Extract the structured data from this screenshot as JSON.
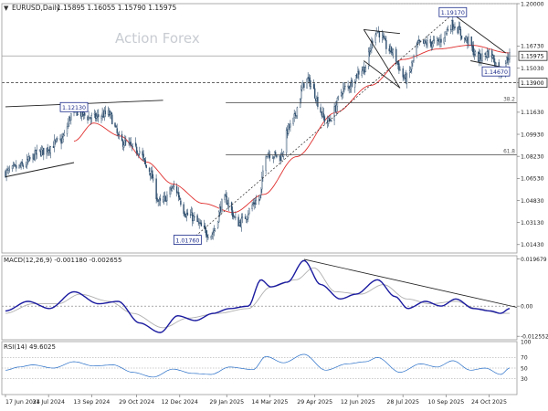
{
  "header": {
    "title": "EURUSD,Daily",
    "ohlc": "1.15895 1.16055 1.15790 1.15975"
  },
  "watermark": "Action Forex",
  "colors": {
    "candle": "#2f4f6f",
    "ma": "#e0302f",
    "macd": "#1a1aa0",
    "signal": "#b0b0b0",
    "trendline": "#222222",
    "dotted": "#555555"
  },
  "chart_data": [
    {
      "type": "candlestick",
      "panel": "price",
      "ylim": [
        1.0078,
        1.2
      ],
      "y_ticks": [
        "1.20000",
        "1.16730",
        "1.15030",
        "1.13900",
        "1.11630",
        "1.09930",
        "1.08230",
        "1.06530",
        "1.04830",
        "1.03130",
        "1.01430"
      ],
      "y_tick_values": [
        1.2,
        1.1673,
        1.1503,
        1.139,
        1.1163,
        1.0993,
        1.0823,
        1.0653,
        1.0483,
        1.0313,
        1.0143
      ],
      "current_price": "1.15975",
      "x_ticks": [
        "17 Jun 2024",
        "31 Jul 2024",
        "13 Sep 2024",
        "29 Oct 2024",
        "12 Dec 2024",
        "29 Jan 2025",
        "14 Mar 2025",
        "29 Apr 2025",
        "12 Jun 2025",
        "28 Jul 2025",
        "10 Sep 2025",
        "24 Oct 2025"
      ],
      "annotations": [
        {
          "label": "1.12130",
          "price": 1.1213
        },
        {
          "label": "1.01760",
          "price": 1.0176
        },
        {
          "label": "1.19170",
          "price": 1.1917
        },
        {
          "label": "1.14670",
          "price": 1.1467
        }
      ],
      "levels": [
        {
          "label": "1.13900",
          "price": 1.139
        },
        {
          "label": "38.2",
          "price": 1.1235
        },
        {
          "label": "61.8",
          "price": 1.0835
        }
      ],
      "anchors": [
        {
          "date": "2024-06-17",
          "price": 1.07
        },
        {
          "date": "2024-07-01",
          "price": 1.074
        },
        {
          "date": "2024-07-24",
          "price": 1.086
        },
        {
          "date": "2024-08-12",
          "price": 1.094
        },
        {
          "date": "2024-08-26",
          "price": 1.117
        },
        {
          "date": "2024-09-13",
          "price": 1.112
        },
        {
          "date": "2024-09-30",
          "price": 1.115
        },
        {
          "date": "2024-10-14",
          "price": 1.093
        },
        {
          "date": "2024-10-31",
          "price": 1.087
        },
        {
          "date": "2024-11-10",
          "price": 1.072
        },
        {
          "date": "2024-11-22",
          "price": 1.046
        },
        {
          "date": "2024-12-06",
          "price": 1.058
        },
        {
          "date": "2024-12-20",
          "price": 1.037
        },
        {
          "date": "2025-01-13",
          "price": 1.022
        },
        {
          "date": "2025-01-27",
          "price": 1.049
        },
        {
          "date": "2025-02-10",
          "price": 1.031
        },
        {
          "date": "2025-03-03",
          "price": 1.049
        },
        {
          "date": "2025-03-10",
          "price": 1.085
        },
        {
          "date": "2025-03-25",
          "price": 1.082
        },
        {
          "date": "2025-04-03",
          "price": 1.105
        },
        {
          "date": "2025-04-21",
          "price": 1.141
        },
        {
          "date": "2025-05-12",
          "price": 1.109
        },
        {
          "date": "2025-05-30",
          "price": 1.135
        },
        {
          "date": "2025-06-18",
          "price": 1.15
        },
        {
          "date": "2025-07-01",
          "price": 1.179
        },
        {
          "date": "2025-07-15",
          "price": 1.164
        },
        {
          "date": "2025-07-31",
          "price": 1.142
        },
        {
          "date": "2025-08-14",
          "price": 1.169
        },
        {
          "date": "2025-09-01",
          "price": 1.17
        },
        {
          "date": "2025-09-17",
          "price": 1.184
        },
        {
          "date": "2025-10-01",
          "price": 1.172
        },
        {
          "date": "2025-10-13",
          "price": 1.158
        },
        {
          "date": "2025-10-24",
          "price": 1.162
        },
        {
          "date": "2025-11-05",
          "price": 1.148
        },
        {
          "date": "2025-11-14",
          "price": 1.16
        }
      ],
      "moving_average": {
        "name": "",
        "points": [
          {
            "date": "2024-08-26",
            "price": 1.094
          },
          {
            "date": "2024-09-15",
            "price": 1.108
          },
          {
            "date": "2024-10-12",
            "price": 1.098
          },
          {
            "date": "2024-11-08",
            "price": 1.078
          },
          {
            "date": "2024-12-05",
            "price": 1.061
          },
          {
            "date": "2025-01-05",
            "price": 1.046
          },
          {
            "date": "2025-02-05",
            "price": 1.039
          },
          {
            "date": "2025-03-08",
            "price": 1.053
          },
          {
            "date": "2025-04-10",
            "price": 1.082
          },
          {
            "date": "2025-05-20",
            "price": 1.116
          },
          {
            "date": "2025-06-25",
            "price": 1.137
          },
          {
            "date": "2025-07-28",
            "price": 1.157
          },
          {
            "date": "2025-09-01",
            "price": 1.165
          },
          {
            "date": "2025-10-05",
            "price": 1.168
          },
          {
            "date": "2025-11-14",
            "price": 1.162
          }
        ]
      }
    },
    {
      "type": "line",
      "panel": "macd",
      "title": "MACD(12,26,9) -0.001180 -0.002655",
      "ylim": [
        -0.014,
        0.021
      ],
      "y_ticks": [
        "0.019679",
        "0.00",
        "-0.012552"
      ],
      "y_tick_values": [
        0.019679,
        0.0,
        -0.012552
      ],
      "series": [
        {
          "role": "macd",
          "points": [
            {
              "date": "2024-06-17",
              "value": -0.002
            },
            {
              "date": "2024-07-10",
              "value": 0.002
            },
            {
              "date": "2024-08-01",
              "value": -0.001
            },
            {
              "date": "2024-08-26",
              "value": 0.006
            },
            {
              "date": "2024-09-20",
              "value": 0.001
            },
            {
              "date": "2024-10-10",
              "value": 0.002
            },
            {
              "date": "2024-11-01",
              "value": -0.007
            },
            {
              "date": "2024-11-22",
              "value": -0.011
            },
            {
              "date": "2024-12-10",
              "value": -0.004
            },
            {
              "date": "2024-12-28",
              "value": -0.006
            },
            {
              "date": "2025-01-15",
              "value": -0.003
            },
            {
              "date": "2025-02-01",
              "value": -0.001
            },
            {
              "date": "2025-02-20",
              "value": 0.0
            },
            {
              "date": "2025-03-05",
              "value": 0.011
            },
            {
              "date": "2025-03-15",
              "value": 0.008
            },
            {
              "date": "2025-04-01",
              "value": 0.01
            },
            {
              "date": "2025-04-18",
              "value": 0.019
            },
            {
              "date": "2025-05-05",
              "value": 0.009
            },
            {
              "date": "2025-05-25",
              "value": 0.003
            },
            {
              "date": "2025-06-10",
              "value": 0.005
            },
            {
              "date": "2025-07-02",
              "value": 0.011
            },
            {
              "date": "2025-07-20",
              "value": 0.004
            },
            {
              "date": "2025-08-02",
              "value": -0.001
            },
            {
              "date": "2025-08-20",
              "value": 0.002
            },
            {
              "date": "2025-09-05",
              "value": 0.0
            },
            {
              "date": "2025-09-20",
              "value": 0.003
            },
            {
              "date": "2025-10-08",
              "value": -0.001
            },
            {
              "date": "2025-10-25",
              "value": -0.002
            },
            {
              "date": "2025-11-05",
              "value": -0.003
            },
            {
              "date": "2025-11-14",
              "value": -0.001
            }
          ]
        },
        {
          "role": "signal",
          "points": [
            {
              "date": "2024-06-17",
              "value": -0.003
            },
            {
              "date": "2024-07-15",
              "value": 0.001
            },
            {
              "date": "2024-08-10",
              "value": 0.001
            },
            {
              "date": "2024-09-01",
              "value": 0.005
            },
            {
              "date": "2024-10-01",
              "value": 0.002
            },
            {
              "date": "2024-10-25",
              "value": -0.003
            },
            {
              "date": "2024-11-25",
              "value": -0.009
            },
            {
              "date": "2024-12-20",
              "value": -0.005
            },
            {
              "date": "2025-01-20",
              "value": -0.003
            },
            {
              "date": "2025-02-20",
              "value": -0.001
            },
            {
              "date": "2025-03-15",
              "value": 0.008
            },
            {
              "date": "2025-04-10",
              "value": 0.011
            },
            {
              "date": "2025-04-28",
              "value": 0.016
            },
            {
              "date": "2025-05-20",
              "value": 0.006
            },
            {
              "date": "2025-06-15",
              "value": 0.005
            },
            {
              "date": "2025-07-08",
              "value": 0.009
            },
            {
              "date": "2025-08-01",
              "value": 0.003
            },
            {
              "date": "2025-08-25",
              "value": 0.001
            },
            {
              "date": "2025-09-20",
              "value": 0.002
            },
            {
              "date": "2025-10-12",
              "value": -0.001
            },
            {
              "date": "2025-11-05",
              "value": -0.003
            },
            {
              "date": "2025-11-14",
              "value": -0.003
            }
          ]
        }
      ]
    },
    {
      "type": "line",
      "panel": "rsi",
      "title": "RSI(14) 49.6025",
      "ylim": [
        0,
        100
      ],
      "y_ticks": [
        "100",
        "70",
        "50",
        "30",
        "0"
      ],
      "y_tick_values": [
        100,
        70,
        50,
        30,
        0
      ],
      "series": [
        {
          "role": "rsi",
          "points": [
            {
              "date": "2024-06-17",
              "value": 46
            },
            {
              "date": "2024-07-01",
              "value": 52
            },
            {
              "date": "2024-07-15",
              "value": 56
            },
            {
              "date": "2024-08-05",
              "value": 50
            },
            {
              "date": "2024-08-26",
              "value": 62
            },
            {
              "date": "2024-09-15",
              "value": 54
            },
            {
              "date": "2024-10-05",
              "value": 56
            },
            {
              "date": "2024-10-25",
              "value": 42
            },
            {
              "date": "2024-11-15",
              "value": 33
            },
            {
              "date": "2024-12-05",
              "value": 48
            },
            {
              "date": "2024-12-25",
              "value": 40
            },
            {
              "date": "2025-01-13",
              "value": 38
            },
            {
              "date": "2025-02-01",
              "value": 52
            },
            {
              "date": "2025-02-25",
              "value": 47
            },
            {
              "date": "2025-03-10",
              "value": 72
            },
            {
              "date": "2025-03-28",
              "value": 60
            },
            {
              "date": "2025-04-18",
              "value": 76
            },
            {
              "date": "2025-05-10",
              "value": 46
            },
            {
              "date": "2025-06-01",
              "value": 58
            },
            {
              "date": "2025-06-20",
              "value": 62
            },
            {
              "date": "2025-07-02",
              "value": 70
            },
            {
              "date": "2025-07-25",
              "value": 42
            },
            {
              "date": "2025-08-15",
              "value": 58
            },
            {
              "date": "2025-09-01",
              "value": 52
            },
            {
              "date": "2025-09-17",
              "value": 64
            },
            {
              "date": "2025-10-05",
              "value": 46
            },
            {
              "date": "2025-10-20",
              "value": 50
            },
            {
              "date": "2025-11-05",
              "value": 38
            },
            {
              "date": "2025-11-14",
              "value": 50
            }
          ]
        }
      ]
    }
  ]
}
